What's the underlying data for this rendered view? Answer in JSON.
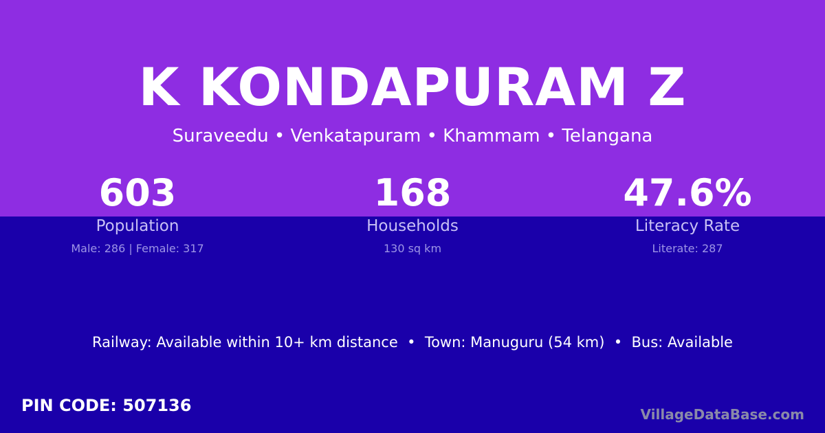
{
  "colors": {
    "top": "#8e2de2",
    "bottom": "#1a00aa"
  },
  "title": "K KONDAPURAM Z",
  "subtitle": "Suraveedu • Venkatapuram • Khammam • Telangana",
  "stats": [
    {
      "value": "603",
      "label": "Population",
      "detail": "Male: 286 | Female: 317"
    },
    {
      "value": "168",
      "label": "Households",
      "detail": "130 sq km"
    },
    {
      "value": "47.6%",
      "label": "Literacy Rate",
      "detail": "Literate: 287"
    }
  ],
  "info": "Railway: Available within 10+ km distance  •  Town: Manuguru (54 km)  •  Bus: Available",
  "pin": "PIN CODE: 507136",
  "brand": "VillageDataBase.com"
}
